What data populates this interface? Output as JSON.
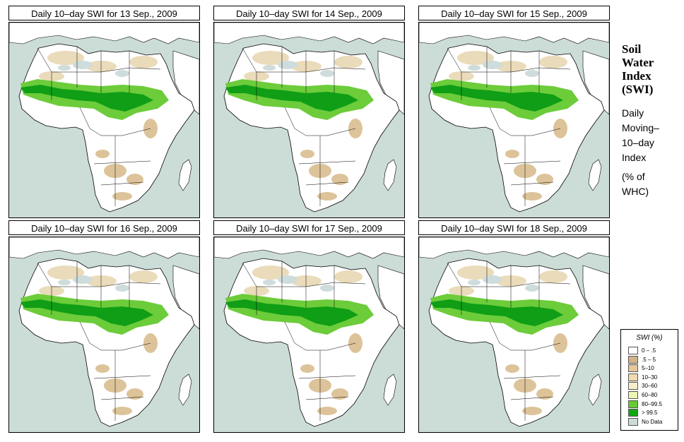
{
  "panels": [
    {
      "title": "Daily 10–day SWI for 13 Sep., 2009"
    },
    {
      "title": "Daily 10–day SWI for 14 Sep., 2009"
    },
    {
      "title": "Daily 10–day SWI for 15 Sep., 2009"
    },
    {
      "title": "Daily 10–day SWI for 16 Sep., 2009"
    },
    {
      "title": "Daily 10–day SWI for 17 Sep., 2009"
    },
    {
      "title": "Daily 10–day SWI for 18 Sep., 2009"
    }
  ],
  "side": {
    "title_lines": [
      "Soil",
      "Water",
      "Index",
      "(SWI)"
    ],
    "subtitle_lines": [
      "Daily",
      "Moving–",
      "10–day",
      "Index"
    ],
    "unit_lines": [
      "(% of",
      "WHC)"
    ]
  },
  "legend": {
    "title": "SWI (%)",
    "items": [
      {
        "label": "0 – .5",
        "color": "#ffffff"
      },
      {
        "label": ".5 – 5",
        "color": "#d2b48c"
      },
      {
        "label": "5–10",
        "color": "#e3c99b"
      },
      {
        "label": "10–30",
        "color": "#efdcb0"
      },
      {
        "label": "30–60",
        "color": "#f7efc9"
      },
      {
        "label": "60–80",
        "color": "#ecf7b4"
      },
      {
        "label": "80–99.5",
        "color": "#66cc33"
      },
      {
        "label": "> 99.5",
        "color": "#0fa80f"
      },
      {
        "label": "No Data",
        "color": "#cbdbd6"
      }
    ]
  },
  "colors": {
    "ocean": "#ccdcd6",
    "land": "#ffffff",
    "dry": "#d9bd8e",
    "wet": "#6ccc3a",
    "saturated": "#0f9e16",
    "nodata": "#cfdcdc"
  }
}
